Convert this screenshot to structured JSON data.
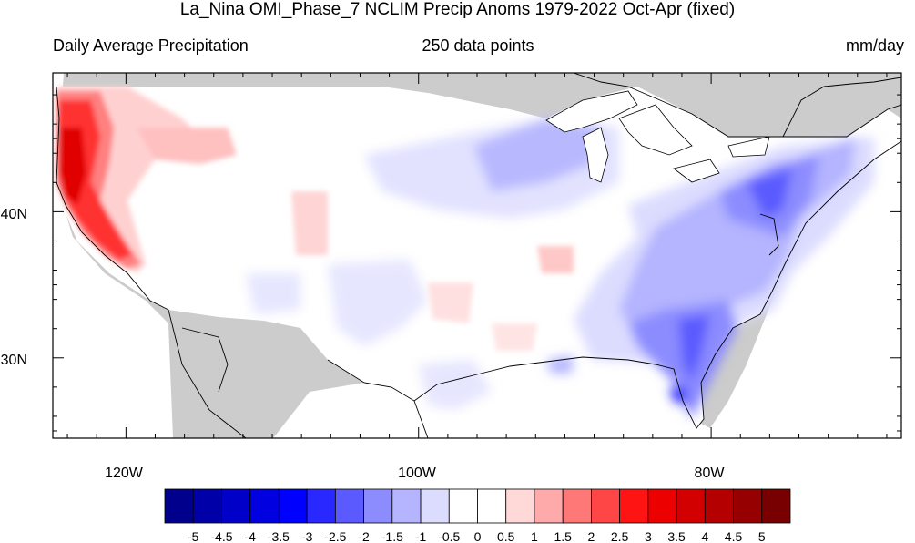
{
  "title": "La_Nina OMI_Phase_7 NCLIM Precip Anoms 1979-2022 Oct-Apr (fixed)",
  "left_label": "Daily Average Precipitation",
  "center_label": "250 data points",
  "right_label": "mm/day",
  "map": {
    "lon_range": [
      -125,
      -67
    ],
    "lat_range": [
      24.5,
      49.5
    ],
    "x_ticks": [
      "120W",
      "100W",
      "80W"
    ],
    "y_ticks": [
      "30N",
      "40N"
    ]
  },
  "colorbar": {
    "labels": [
      "-5",
      "-4.5",
      "-4",
      "-3.5",
      "-3",
      "-2.5",
      "-2",
      "-1.5",
      "-1",
      "-0.5",
      "0",
      "0.5",
      "1",
      "1.5",
      "2",
      "2.5",
      "3",
      "3.5",
      "4",
      "4.5",
      "5"
    ],
    "colors": [
      "#00008c",
      "#0000a8",
      "#0000c8",
      "#0000e0",
      "#0000ff",
      "#2828ff",
      "#5a5aff",
      "#8c8cff",
      "#b4b4ff",
      "#dcdcff",
      "#ffffff",
      "#ffffff",
      "#ffd8d8",
      "#ffaaaa",
      "#ff7878",
      "#ff4646",
      "#ff1414",
      "#ec0000",
      "#d20000",
      "#b40000",
      "#960000",
      "#780000"
    ]
  }
}
